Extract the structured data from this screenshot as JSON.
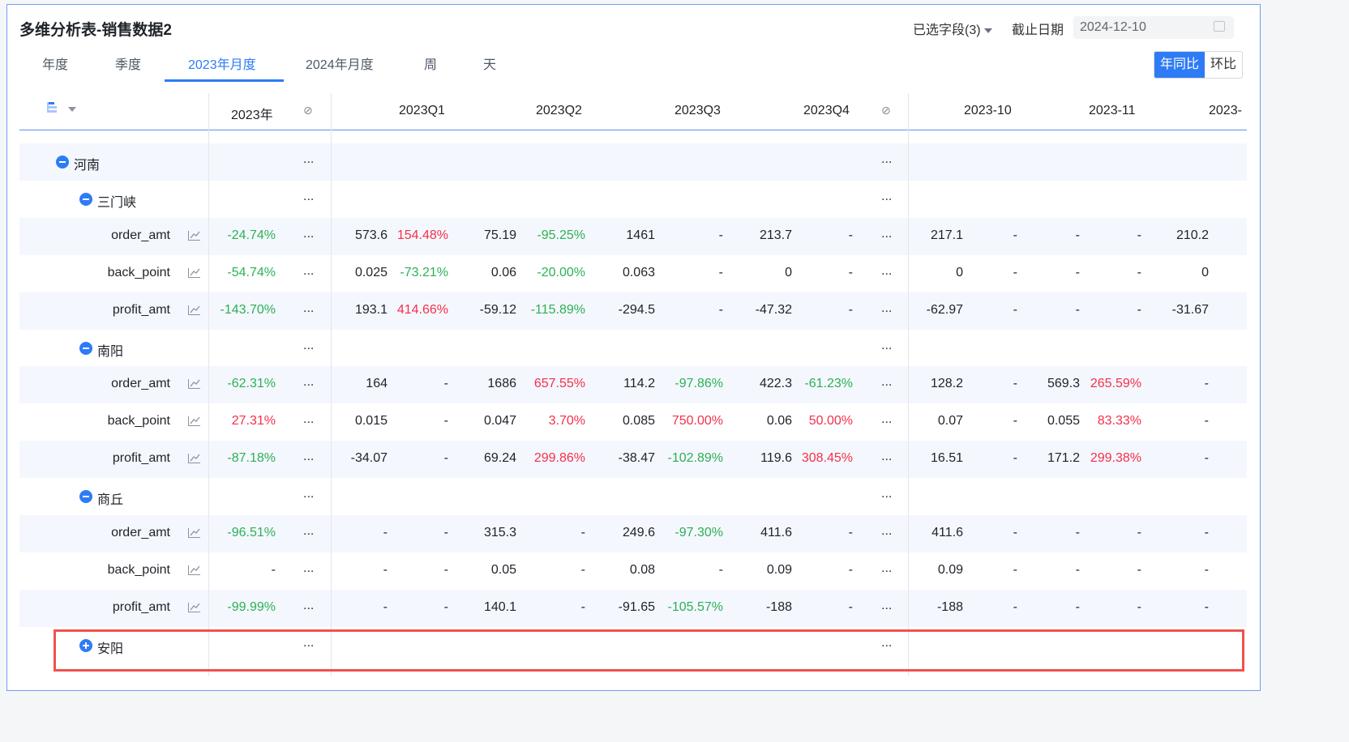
{
  "title": "多维分析表-销售数据2",
  "tabs": [
    {
      "label": "年度"
    },
    {
      "label": "季度"
    },
    {
      "label": "2023年月度",
      "active": true
    },
    {
      "label": "2024年月度"
    },
    {
      "label": "周"
    },
    {
      "label": "天"
    }
  ],
  "toolbar": {
    "fields_label": "已选字段(3)",
    "date_label": "截止日期",
    "date_value": "2024-12-10",
    "compare": {
      "yoy": "年同比",
      "mom": "环比",
      "selected": "yoy"
    }
  },
  "colors": {
    "accent": "#2e7bf6",
    "increase": "#f5304a",
    "decrease": "#2cb154",
    "highlight": "#f0524d"
  },
  "table": {
    "headers": {
      "year": "2023年",
      "q1": "2023Q1",
      "q2": "2023Q2",
      "q3": "2023Q3",
      "q4": "2023Q4",
      "m10": "2023-10",
      "m11": "2023-11",
      "m12": "2023-"
    },
    "more": "...",
    "rows": [
      {
        "type": "group",
        "level": 0,
        "label": "河南",
        "expanded": true
      },
      {
        "type": "group",
        "level": 1,
        "label": "三门峡",
        "expanded": true
      },
      {
        "type": "metric",
        "label": "order_amt",
        "year": "-24.74%",
        "cells": [
          "573.6",
          "154.48%",
          "75.19",
          "-95.25%",
          "1461",
          "-",
          "213.7",
          "-"
        ],
        "months": [
          "217.1",
          "-",
          "-",
          "-",
          "210.2"
        ]
      },
      {
        "type": "metric",
        "label": "back_point",
        "year": "-54.74%",
        "cells": [
          "0.025",
          "-73.21%",
          "0.06",
          "-20.00%",
          "0.063",
          "-",
          "0",
          "-"
        ],
        "months": [
          "0",
          "-",
          "-",
          "-",
          "0"
        ]
      },
      {
        "type": "metric",
        "label": "profit_amt",
        "year": "-143.70%",
        "cells": [
          "193.1",
          "414.66%",
          "-59.12",
          "-115.89%",
          "-294.5",
          "-",
          "-47.32",
          "-"
        ],
        "months": [
          "-62.97",
          "-",
          "-",
          "-",
          "-31.67"
        ]
      },
      {
        "type": "group",
        "level": 1,
        "label": "南阳",
        "expanded": true
      },
      {
        "type": "metric",
        "label": "order_amt",
        "year": "-62.31%",
        "cells": [
          "164",
          "-",
          "1686",
          "657.55%",
          "114.2",
          "-97.86%",
          "422.3",
          "-61.23%"
        ],
        "months": [
          "128.2",
          "-",
          "569.3",
          "265.59%",
          "-"
        ]
      },
      {
        "type": "metric",
        "label": "back_point",
        "year": "27.31%",
        "cells": [
          "0.015",
          "-",
          "0.047",
          "3.70%",
          "0.085",
          "750.00%",
          "0.06",
          "50.00%"
        ],
        "months": [
          "0.07",
          "-",
          "0.055",
          "83.33%",
          "-"
        ]
      },
      {
        "type": "metric",
        "label": "profit_amt",
        "year": "-87.18%",
        "cells": [
          "-34.07",
          "-",
          "69.24",
          "299.86%",
          "-38.47",
          "-102.89%",
          "119.6",
          "308.45%"
        ],
        "months": [
          "16.51",
          "-",
          "171.2",
          "299.38%",
          "-"
        ]
      },
      {
        "type": "group",
        "level": 1,
        "label": "商丘",
        "expanded": true
      },
      {
        "type": "metric",
        "label": "order_amt",
        "year": "-96.51%",
        "cells": [
          "-",
          "-",
          "315.3",
          "-",
          "249.6",
          "-97.30%",
          "411.6",
          "-"
        ],
        "months": [
          "411.6",
          "-",
          "-",
          "-",
          "-"
        ]
      },
      {
        "type": "metric",
        "label": "back_point",
        "year": "-",
        "cells": [
          "-",
          "-",
          "0.05",
          "-",
          "0.08",
          "-",
          "0.09",
          "-"
        ],
        "months": [
          "0.09",
          "-",
          "-",
          "-",
          "-"
        ]
      },
      {
        "type": "metric",
        "label": "profit_amt",
        "year": "-99.99%",
        "cells": [
          "-",
          "-",
          "140.1",
          "-",
          "-91.65",
          "-105.57%",
          "-188",
          "-"
        ],
        "months": [
          "-188",
          "-",
          "-",
          "-",
          "-"
        ]
      },
      {
        "type": "group",
        "level": 1,
        "label": "安阳",
        "expanded": false,
        "highlighted": true
      }
    ]
  }
}
